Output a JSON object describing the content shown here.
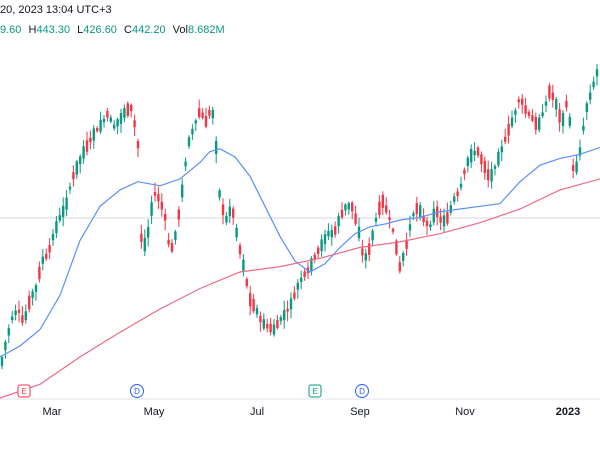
{
  "header": {
    "title": "20, 2023 13:04 UTC+3",
    "ohlc": [
      {
        "label": "",
        "value": "9.60"
      },
      {
        "label": "H",
        "value": "443.30"
      },
      {
        "label": "L",
        "value": "426.60"
      },
      {
        "label": "C",
        "value": "442.20"
      },
      {
        "label": "Vol",
        "value": "8.682M"
      }
    ]
  },
  "colors": {
    "up": "#089981",
    "down": "#f23645",
    "ma_fast": "#5b8ff9",
    "ma_slow": "#f06a87",
    "grid": "#e0e3eb",
    "axis_text": "#131722"
  },
  "chart_data": {
    "type": "candlestick",
    "x_ticks": [
      "Mar",
      "May",
      "Jul",
      "Sep",
      "Nov",
      "2023"
    ],
    "events": [
      {
        "label": "E",
        "month": "Feb",
        "kind": "earnings"
      },
      {
        "label": "D",
        "month": "May",
        "kind": "dividend"
      },
      {
        "label": "E",
        "month": "Aug",
        "kind": "earnings"
      },
      {
        "label": "D",
        "month": "Aug",
        "kind": "dividend"
      }
    ],
    "price_series": [
      [
        0,
        320
      ],
      [
        6,
        340
      ],
      [
        12,
        358
      ],
      [
        18,
        365
      ],
      [
        24,
        355
      ],
      [
        30,
        372
      ],
      [
        36,
        380
      ],
      [
        42,
        400
      ],
      [
        48,
        405
      ],
      [
        54,
        420
      ],
      [
        60,
        432
      ],
      [
        66,
        440
      ],
      [
        72,
        460
      ],
      [
        78,
        470
      ],
      [
        84,
        480
      ],
      [
        90,
        488
      ],
      [
        96,
        495
      ],
      [
        102,
        500
      ],
      [
        108,
        508
      ],
      [
        114,
        498
      ],
      [
        120,
        503
      ],
      [
        126,
        510
      ],
      [
        132,
        512
      ],
      [
        138,
        485
      ],
      [
        142,
        405
      ],
      [
        148,
        420
      ],
      [
        154,
        450
      ],
      [
        160,
        445
      ],
      [
        166,
        430
      ],
      [
        170,
        405
      ],
      [
        176,
        420
      ],
      [
        182,
        450
      ],
      [
        188,
        485
      ],
      [
        194,
        498
      ],
      [
        200,
        510
      ],
      [
        206,
        502
      ],
      [
        212,
        513
      ],
      [
        216,
        485
      ],
      [
        220,
        445
      ],
      [
        226,
        430
      ],
      [
        232,
        440
      ],
      [
        238,
        415
      ],
      [
        244,
        395
      ],
      [
        250,
        372
      ],
      [
        256,
        365
      ],
      [
        262,
        355
      ],
      [
        268,
        352
      ],
      [
        274,
        350
      ],
      [
        280,
        357
      ],
      [
        286,
        362
      ],
      [
        292,
        370
      ],
      [
        298,
        382
      ],
      [
        304,
        390
      ],
      [
        310,
        395
      ],
      [
        316,
        405
      ],
      [
        322,
        412
      ],
      [
        328,
        420
      ],
      [
        334,
        420
      ],
      [
        340,
        432
      ],
      [
        346,
        440
      ],
      [
        352,
        440
      ],
      [
        358,
        425
      ],
      [
        364,
        400
      ],
      [
        370,
        410
      ],
      [
        376,
        430
      ],
      [
        382,
        445
      ],
      [
        388,
        435
      ],
      [
        394,
        420
      ],
      [
        400,
        395
      ],
      [
        406,
        410
      ],
      [
        412,
        432
      ],
      [
        418,
        440
      ],
      [
        424,
        430
      ],
      [
        430,
        425
      ],
      [
        436,
        438
      ],
      [
        442,
        428
      ],
      [
        448,
        432
      ],
      [
        454,
        445
      ],
      [
        460,
        452
      ],
      [
        466,
        470
      ],
      [
        472,
        478
      ],
      [
        478,
        480
      ],
      [
        484,
        470
      ],
      [
        490,
        460
      ],
      [
        496,
        470
      ],
      [
        502,
        482
      ],
      [
        508,
        495
      ],
      [
        514,
        505
      ],
      [
        520,
        520
      ],
      [
        526,
        510
      ],
      [
        532,
        505
      ],
      [
        538,
        498
      ],
      [
        544,
        510
      ],
      [
        550,
        525
      ],
      [
        556,
        515
      ],
      [
        562,
        500
      ],
      [
        568,
        520
      ],
      [
        574,
        460
      ],
      [
        580,
        480
      ],
      [
        586,
        510
      ],
      [
        592,
        525
      ],
      [
        598,
        540
      ]
    ],
    "ma_fast": [
      [
        0,
        330
      ],
      [
        20,
        338
      ],
      [
        40,
        350
      ],
      [
        60,
        375
      ],
      [
        80,
        415
      ],
      [
        100,
        440
      ],
      [
        120,
        452
      ],
      [
        138,
        458
      ],
      [
        160,
        455
      ],
      [
        180,
        460
      ],
      [
        200,
        472
      ],
      [
        210,
        480
      ],
      [
        220,
        482
      ],
      [
        235,
        476
      ],
      [
        250,
        462
      ],
      [
        265,
        440
      ],
      [
        280,
        418
      ],
      [
        295,
        400
      ],
      [
        310,
        392
      ],
      [
        325,
        398
      ],
      [
        340,
        410
      ],
      [
        355,
        420
      ],
      [
        370,
        425
      ],
      [
        385,
        427
      ],
      [
        400,
        430
      ],
      [
        420,
        432
      ],
      [
        440,
        436
      ],
      [
        460,
        438
      ],
      [
        480,
        440
      ],
      [
        500,
        442
      ],
      [
        520,
        458
      ],
      [
        540,
        470
      ],
      [
        560,
        475
      ],
      [
        580,
        478
      ],
      [
        600,
        483
      ]
    ],
    "ma_slow": [
      [
        0,
        300
      ],
      [
        40,
        310
      ],
      [
        80,
        330
      ],
      [
        120,
        348
      ],
      [
        160,
        365
      ],
      [
        200,
        380
      ],
      [
        240,
        392
      ],
      [
        280,
        396
      ],
      [
        320,
        402
      ],
      [
        360,
        410
      ],
      [
        400,
        414
      ],
      [
        440,
        420
      ],
      [
        480,
        428
      ],
      [
        520,
        438
      ],
      [
        560,
        452
      ],
      [
        600,
        460
      ]
    ]
  }
}
